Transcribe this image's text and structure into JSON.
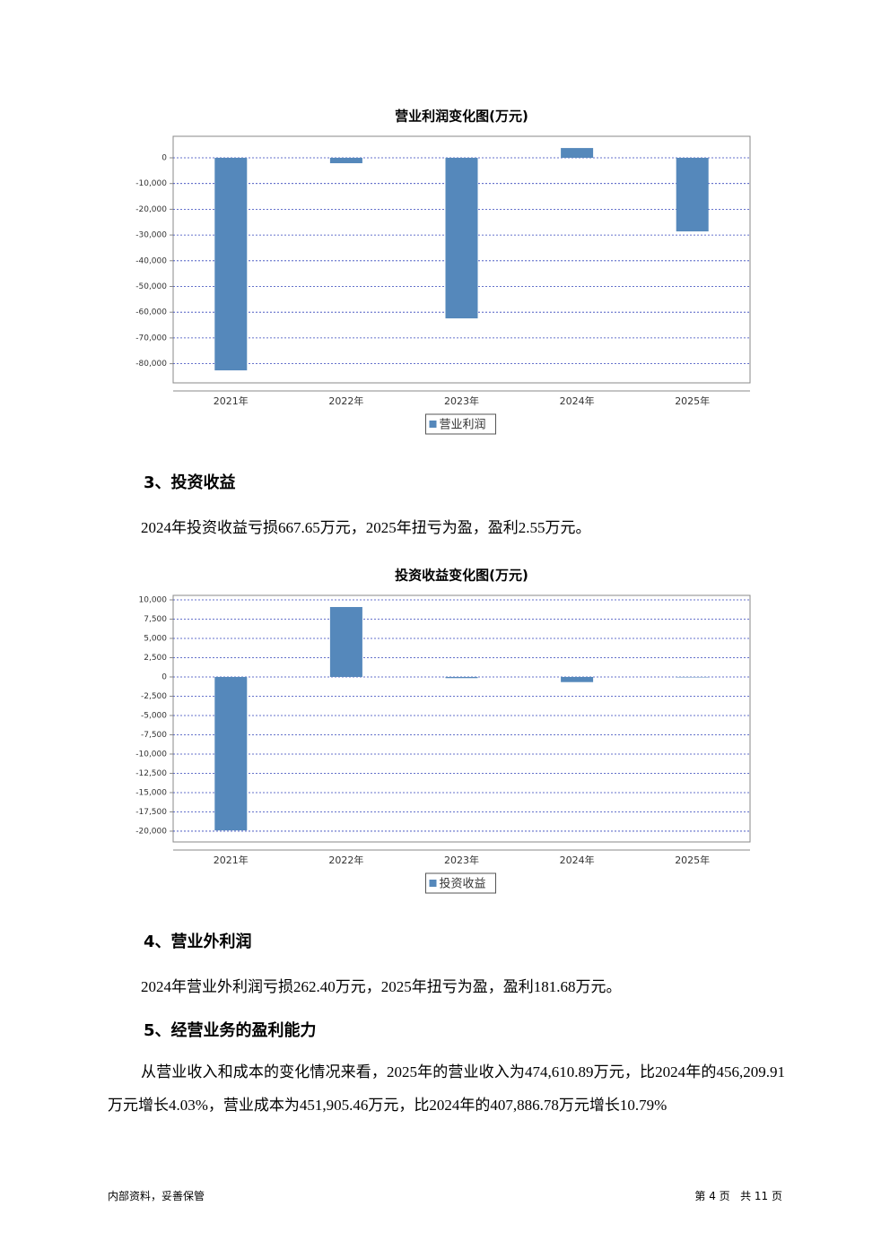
{
  "chart_data": [
    {
      "type": "bar",
      "title": "营业利润变化图(万元)",
      "categories": [
        "2021年",
        "2022年",
        "2023年",
        "2024年",
        "2025年"
      ],
      "series": [
        {
          "name": "营业利润",
          "color": "#5588bb",
          "values": [
            -82600,
            -2100,
            -62400,
            3800,
            -28600
          ]
        }
      ],
      "ylim": [
        -87460,
        8360
      ],
      "yticks": [
        0,
        {
          "value": -10000,
          "label": "-10,000"
        },
        {
          "value": -20000,
          "label": "-20,000"
        },
        {
          "value": -30000,
          "label": "-30,000"
        },
        {
          "value": -40000,
          "label": "-40,000"
        },
        {
          "value": -50000,
          "label": "-50,000"
        },
        {
          "value": -60000,
          "label": "-60,000"
        },
        {
          "value": -70000,
          "label": "-70,000"
        },
        {
          "value": -80000,
          "label": "-80,000"
        }
      ],
      "grid": true,
      "legend": "bottom"
    },
    {
      "type": "bar",
      "title": "投资收益变化图(万元)",
      "categories": [
        "2021年",
        "2022年",
        "2023年",
        "2024年",
        "2025年"
      ],
      "series": [
        {
          "name": "投资收益",
          "color": "#5588bb",
          "values": [
            -19900,
            9070,
            -150,
            -667.65,
            2.55
          ]
        }
      ],
      "ylim": [
        -21400,
        10580
      ],
      "yticks": [
        {
          "value": 10000,
          "label": "10,000"
        },
        {
          "value": 7500,
          "label": "7,500"
        },
        {
          "value": 5000,
          "label": "5,000"
        },
        {
          "value": 2500,
          "label": "2,500"
        },
        0,
        {
          "value": -2500,
          "label": "-2,500"
        },
        {
          "value": -5000,
          "label": "-5,000"
        },
        {
          "value": -7500,
          "label": "-7,500"
        },
        {
          "value": -10000,
          "label": "-10,000"
        },
        {
          "value": -12500,
          "label": "-12,500"
        },
        {
          "value": -15000,
          "label": "-15,000"
        },
        {
          "value": -17500,
          "label": "-17,500"
        },
        {
          "value": -20000,
          "label": "-20,000"
        }
      ],
      "grid": true,
      "legend": "bottom"
    }
  ],
  "sections": [
    {
      "heading": "3、投资收益",
      "paragraph": "2024年投资收益亏损667.65万元，2025年扭亏为盈，盈利2.55万元。"
    },
    {
      "heading": "4、营业外利润",
      "paragraph": "2024年营业外利润亏损262.40万元，2025年扭亏为盈，盈利181.68万元。"
    },
    {
      "heading": "5、经营业务的盈利能力",
      "paragraph": "从营业收入和成本的变化情况来看，2025年的营业收入为474,610.89万元，比2024年的456,209.91万元增长4.03%，营业成本为451,905.46万元，比2024年的407,886.78万元增长10.79%"
    }
  ],
  "footer": {
    "left": "内部资料，妥善保管",
    "right": "第 4 页   共 11 页"
  }
}
